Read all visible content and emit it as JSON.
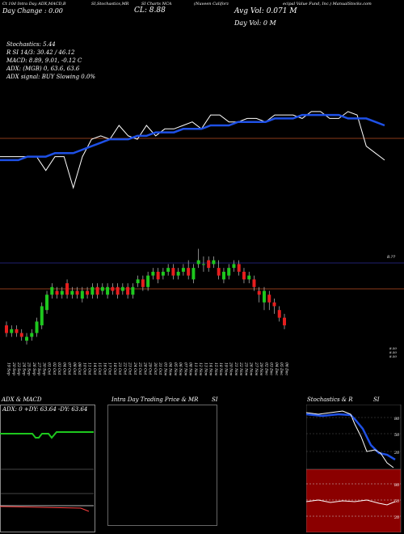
{
  "header": {
    "line1_left": "Ct 10d Intra Day ADX,MACD,B",
    "line1_mid": "SI,Stochastics,MR",
    "line1_mid2": "SI Charts NCA",
    "line1_right": "(Nuveen Califorz",
    "line1_far": "ecipal Value Fund, Inc.) ManualStocks.com",
    "day_change": "Day Change : 0.00",
    "cl": "CL: 8.88",
    "avg_vol": "Avg Vol: 0.071 M",
    "day_vol": "Day Vol: 0  M"
  },
  "indicators": {
    "stochastics": "Stochastics: 5.44",
    "rsi_line": "R            SI 14/3: 30.42 / 46.12",
    "macd": "MACD: 8.89, 9.01, -0.12  C",
    "adx": "ADX:                                 (MGB) 0, 63.6, 63.6",
    "adx_signal": "ADX  signal:                              BUY Slowing 0.0%"
  },
  "price_labels": {
    "top": "8.??",
    "low1": "8.50",
    "low2": "8.50",
    "low3": "8.50"
  },
  "colors": {
    "background": "#000000",
    "ema_line": "#1e50e6",
    "price_line": "#ffffff",
    "up_candle": "#1ec81e",
    "down_candle": "#e61e1e",
    "ref_line": "#8b3a1a",
    "nav_line": "#202070",
    "rsi_fill": "#8b0000"
  },
  "chart_data": [
    {
      "type": "line",
      "title": "Price with moving average",
      "series": [
        {
          "values": [
            8.74,
            8.74,
            8.74,
            8.74,
            8.74,
            8.7,
            8.74,
            8.74,
            8.65,
            8.74,
            8.79,
            8.8,
            8.79,
            8.83,
            8.8,
            8.79,
            8.83,
            8.8,
            8.82,
            8.82,
            8.83,
            8.84,
            8.82,
            8.86,
            8.86,
            8.84,
            8.84,
            8.85,
            8.85,
            8.84,
            8.86,
            8.86,
            8.86,
            8.85,
            8.87,
            8.87,
            8.85,
            8.85,
            8.87,
            8.86,
            8.77,
            8.75,
            8.73
          ]
        },
        {
          "values": [
            8.73,
            8.73,
            8.73,
            8.74,
            8.74,
            8.74,
            8.75,
            8.75,
            8.75,
            8.76,
            8.77,
            8.78,
            8.79,
            8.79,
            8.79,
            8.8,
            8.8,
            8.81,
            8.81,
            8.81,
            8.82,
            8.82,
            8.82,
            8.83,
            8.83,
            8.83,
            8.84,
            8.84,
            8.84,
            8.84,
            8.85,
            8.85,
            8.85,
            8.86,
            8.86,
            8.86,
            8.86,
            8.86,
            8.85,
            8.85,
            8.85,
            8.84,
            8.83
          ]
        }
      ]
    },
    {
      "type": "candlestick",
      "x": [
        "19 Sep",
        "20 Sep",
        "23 Sep",
        "24 Sep",
        "25 Sep",
        "26 Sep",
        "27 Sep",
        "30 Sep",
        "01 Oct",
        "02 Oct",
        "03 Oct",
        "04 Oct",
        "07 Oct",
        "08 Oct",
        "09 Oct",
        "10 Oct",
        "11 Oct",
        "14 Oct",
        "15 Oct",
        "16 Oct",
        "17 Oct",
        "18 Oct",
        "21 Oct",
        "22 Oct",
        "23 Oct",
        "24 Oct",
        "25 Oct",
        "28 Oct",
        "29 Oct",
        "30 Oct",
        "31 Oct",
        "01 Nov",
        "04 Nov",
        "05 Nov",
        "06 Nov",
        "07 Nov",
        "08 Nov",
        "11 Nov",
        "12 Nov",
        "13 Nov",
        "14 Nov",
        "15 Nov",
        "18 Nov",
        "19 Nov",
        "20 Nov",
        "21 Nov",
        "22 Nov",
        "25 Nov",
        "26 Nov",
        "27 Nov",
        "29 Nov",
        "02 Dec",
        "03 Dec",
        "04 Dec",
        "05 Dec",
        "06 Dec"
      ],
      "open": [
        8.58,
        8.56,
        8.57,
        8.56,
        8.54,
        8.55,
        8.56,
        8.58,
        8.62,
        8.66,
        8.67,
        8.66,
        8.69,
        8.66,
        8.67,
        8.65,
        8.67,
        8.66,
        8.68,
        8.67,
        8.66,
        8.68,
        8.68,
        8.67,
        8.68,
        8.66,
        8.69,
        8.7,
        8.68,
        8.71,
        8.72,
        8.71,
        8.72,
        8.73,
        8.71,
        8.72,
        8.73,
        8.7,
        8.74,
        8.74,
        8.75,
        8.74,
        8.73,
        8.7,
        8.71,
        8.73,
        8.74,
        8.72,
        8.7,
        8.7,
        8.67,
        8.64,
        8.66,
        8.64,
        8.62,
        8.6
      ],
      "close": [
        8.56,
        8.57,
        8.56,
        8.55,
        8.55,
        8.56,
        8.59,
        8.63,
        8.66,
        8.68,
        8.66,
        8.67,
        8.66,
        8.67,
        8.66,
        8.67,
        8.66,
        8.68,
        8.66,
        8.68,
        8.68,
        8.67,
        8.66,
        8.68,
        8.66,
        8.68,
        8.7,
        8.68,
        8.71,
        8.72,
        8.7,
        8.72,
        8.73,
        8.71,
        8.72,
        8.73,
        8.71,
        8.73,
        8.75,
        8.74,
        8.73,
        8.75,
        8.71,
        8.72,
        8.73,
        8.74,
        8.72,
        8.7,
        8.71,
        8.68,
        8.66,
        8.67,
        8.64,
        8.63,
        8.6,
        8.58
      ],
      "high": [
        8.59,
        8.58,
        8.58,
        8.57,
        8.56,
        8.57,
        8.6,
        8.64,
        8.67,
        8.69,
        8.68,
        8.68,
        8.7,
        8.68,
        8.68,
        8.68,
        8.68,
        8.69,
        8.69,
        8.69,
        8.69,
        8.69,
        8.69,
        8.69,
        8.69,
        8.69,
        8.71,
        8.71,
        8.72,
        8.73,
        8.73,
        8.73,
        8.74,
        8.74,
        8.73,
        8.74,
        8.75,
        8.74,
        8.78,
        8.76,
        8.76,
        8.76,
        8.75,
        8.73,
        8.74,
        8.75,
        8.75,
        8.73,
        8.72,
        8.71,
        8.68,
        8.68,
        8.67,
        8.65,
        8.63,
        8.61
      ],
      "low": [
        8.55,
        8.55,
        8.55,
        8.54,
        8.53,
        8.54,
        8.55,
        8.57,
        8.61,
        8.65,
        8.65,
        8.65,
        8.65,
        8.65,
        8.65,
        8.64,
        8.65,
        8.65,
        8.65,
        8.66,
        8.65,
        8.66,
        8.65,
        8.66,
        8.65,
        8.65,
        8.68,
        8.67,
        8.67,
        8.7,
        8.69,
        8.7,
        8.71,
        8.7,
        8.7,
        8.71,
        8.7,
        8.69,
        8.73,
        8.72,
        8.72,
        8.73,
        8.7,
        8.69,
        8.7,
        8.72,
        8.71,
        8.69,
        8.69,
        8.67,
        8.64,
        8.62,
        8.62,
        8.61,
        8.59,
        8.57
      ],
      "ylim": [
        8.5,
        8.8
      ]
    }
  ],
  "lower_panels": {
    "adx_title": "ADX  & MACD",
    "adx_values": "ADX: 0  +DY: 63.64  -DY: 63.64",
    "intra_title": "Intra  Day  Trading  Price  & MR",
    "intra_title_right": "SI",
    "stoch_title": "Stochastics & R",
    "stoch_title_right": "SI",
    "stoch_levels": [
      "80",
      "50",
      "20"
    ],
    "rsi_levels": [
      "80",
      "50",
      "20"
    ]
  }
}
